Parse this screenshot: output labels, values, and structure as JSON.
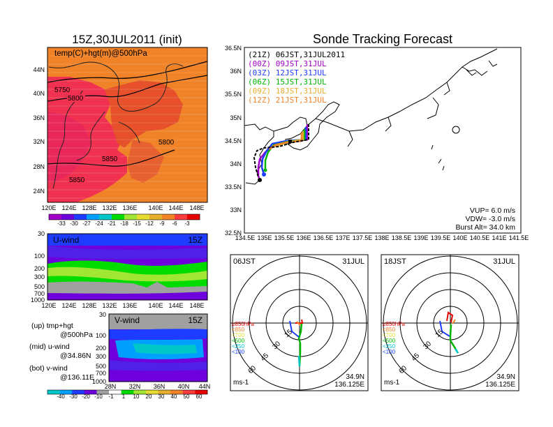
{
  "figure": {
    "left_title": "15Z,30JUL2011 (init)",
    "right_title": "Sonde Tracking Forecast"
  },
  "upper_map": {
    "label": "temp(C)+hgt(m)@500hPa",
    "lat_labels": [
      "44N",
      "40N",
      "36N",
      "32N",
      "28N",
      "24N"
    ],
    "lon_labels": [
      "120E",
      "124E",
      "128E",
      "132E",
      "136E",
      "140E",
      "144E",
      "148E"
    ],
    "contours": [
      "5750",
      "5800",
      "5800",
      "5850",
      "5850"
    ],
    "colorbar": {
      "labels": [
        "-33",
        "-30",
        "-27",
        "-24",
        "-21",
        "-18",
        "-15",
        "-12",
        "-9",
        "-6",
        "-3"
      ],
      "colors": [
        "#a000c8",
        "#6e00dc",
        "#1e3cff",
        "#00a0ff",
        "#00c8c8",
        "#00dc00",
        "#a0e632",
        "#e6dc32",
        "#e6af2d",
        "#f08228",
        "#fa3c3c",
        "#e60000"
      ]
    },
    "fill_colors": {
      "warm": "#f08228",
      "hot": "#f03250",
      "mid": "#e6502a"
    }
  },
  "uwind": {
    "label": "U-wind",
    "time": "15Z",
    "p_labels": [
      "30",
      "100",
      "200",
      "300",
      "500",
      "700",
      "1000"
    ],
    "lon_labels": [
      "120E",
      "124E",
      "128E",
      "132E",
      "136E",
      "140E",
      "144E",
      "148E"
    ]
  },
  "vwind": {
    "label": "V-wind",
    "time": "15Z",
    "p_labels": [
      "30",
      "100",
      "200",
      "300",
      "500",
      "700",
      "1000"
    ],
    "lat_labels": [
      "28N",
      "32N",
      "36N",
      "40N",
      "44N"
    ],
    "colorbar_labels": [
      "-40",
      "-30",
      "-20",
      "-10",
      "-1",
      "1",
      "10",
      "20",
      "30",
      "40",
      "50",
      "60"
    ],
    "colorbar_colors": [
      "#00c8c8",
      "#00a0ff",
      "#1e3cff",
      "#6e00dc",
      "#a0a0a0",
      "#ffffff",
      "#00dc00",
      "#a0e632",
      "#e6dc32",
      "#e6af2d",
      "#f08228",
      "#fa3c3c",
      "#e60000"
    ]
  },
  "legend_text": {
    "up1": "(up)  tmp+hgt",
    "up2": "@500hPa",
    "mid1": "(mid)  u-wind",
    "mid2": "@34.86N",
    "bot1": "(bot)  v-wind",
    "bot2": "@136.11E"
  },
  "track_map": {
    "lat_labels": [
      "36.5N",
      "36N",
      "35.5N",
      "35N",
      "34.5N",
      "34N",
      "33.5N",
      "33N",
      "32.5N"
    ],
    "lon_labels": [
      "134.5E",
      "135E",
      "135.5E",
      "136E",
      "136.5E",
      "137E",
      "137.5E",
      "138E",
      "138.5E",
      "139E",
      "139.5E",
      "140E",
      "140.5E",
      "141E",
      "141.5E"
    ],
    "legend": [
      {
        "text": "(21Z)  06JST,31JUL2011",
        "color": "#000000"
      },
      {
        "text": "(00Z)  09JST,31JUL",
        "color": "#a000c8"
      },
      {
        "text": "(03Z)  12JST,31JUL",
        "color": "#1e3cff"
      },
      {
        "text": "(06Z)  15JST,31JUL",
        "color": "#00b400"
      },
      {
        "text": "(09Z)  18JST,31JUL",
        "color": "#e6af2d"
      },
      {
        "text": "(12Z)  21JST,31JUL",
        "color": "#f08228"
      }
    ],
    "params": {
      "vup": "VUP=  6.0  m/s",
      "vdw": "VDW=  -3.0  m/s",
      "burst": "Burst Alt=  34.0  km"
    }
  },
  "hodo_left": {
    "time": "06JST",
    "date": "31JUL",
    "unit": "ms-1",
    "lat": "34.9N",
    "lon": "136.125E",
    "rings": [
      "15",
      "30",
      "45",
      "60"
    ],
    "levels": [
      {
        "text": "≥850hPa",
        "color": "#e60000"
      },
      {
        "text": "<850",
        "color": "#f08228"
      },
      {
        "text": "<700",
        "color": "#e6dc32"
      },
      {
        "text": "<500",
        "color": "#00b400"
      },
      {
        "text": "<250",
        "color": "#00c8c8"
      },
      {
        "text": "<100",
        "color": "#1e3cff"
      }
    ]
  },
  "hodo_right": {
    "time": "18JST",
    "date": "31JUL",
    "unit": "ms-1",
    "lat": "34.9N",
    "lon": "136.125E",
    "rings": [
      "15",
      "30",
      "45",
      "60"
    ],
    "levels": [
      {
        "text": "≥850hPa",
        "color": "#e60000"
      },
      {
        "text": "<850",
        "color": "#f08228"
      },
      {
        "text": "<700",
        "color": "#e6dc32"
      },
      {
        "text": "<500",
        "color": "#00b400"
      },
      {
        "text": "<250",
        "color": "#00c8c8"
      },
      {
        "text": "<100",
        "color": "#1e3cff"
      }
    ]
  }
}
